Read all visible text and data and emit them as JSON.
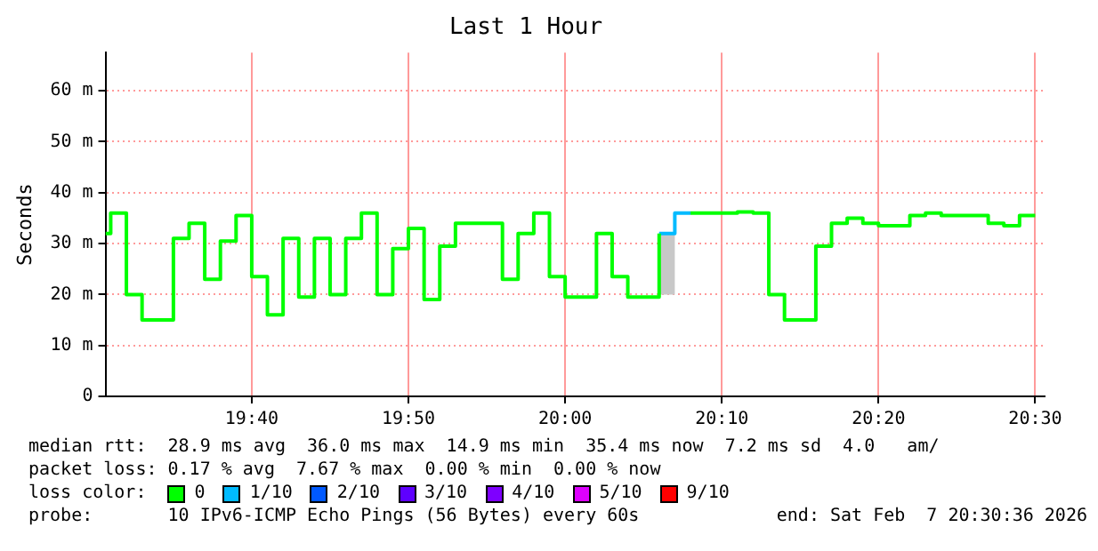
{
  "chart_data": {
    "type": "step",
    "title": "Last 1 Hour",
    "ylabel": "Seconds",
    "x": [
      "2026-02-07T19:30:40",
      "2026-02-07T19:31",
      "2026-02-07T19:32",
      "2026-02-07T19:33",
      "2026-02-07T19:34",
      "2026-02-07T19:35",
      "2026-02-07T19:36",
      "2026-02-07T19:37",
      "2026-02-07T19:38",
      "2026-02-07T19:39",
      "2026-02-07T19:40",
      "2026-02-07T19:41",
      "2026-02-07T19:42",
      "2026-02-07T19:43",
      "2026-02-07T19:44",
      "2026-02-07T19:45",
      "2026-02-07T19:46",
      "2026-02-07T19:47",
      "2026-02-07T19:48",
      "2026-02-07T19:49",
      "2026-02-07T19:50",
      "2026-02-07T19:51",
      "2026-02-07T19:52",
      "2026-02-07T19:53",
      "2026-02-07T19:54",
      "2026-02-07T19:55",
      "2026-02-07T19:56",
      "2026-02-07T19:57",
      "2026-02-07T19:58",
      "2026-02-07T19:59",
      "2026-02-07T20:00",
      "2026-02-07T20:01",
      "2026-02-07T20:02",
      "2026-02-07T20:03",
      "2026-02-07T20:04",
      "2026-02-07T20:05",
      "2026-02-07T20:06",
      "2026-02-07T20:07",
      "2026-02-07T20:08",
      "2026-02-07T20:09",
      "2026-02-07T20:10",
      "2026-02-07T20:11",
      "2026-02-07T20:12",
      "2026-02-07T20:13",
      "2026-02-07T20:14",
      "2026-02-07T20:15",
      "2026-02-07T20:16",
      "2026-02-07T20:17",
      "2026-02-07T20:18",
      "2026-02-07T20:19",
      "2026-02-07T20:20",
      "2026-02-07T20:21",
      "2026-02-07T20:22",
      "2026-02-07T20:23",
      "2026-02-07T20:24",
      "2026-02-07T20:25",
      "2026-02-07T20:26",
      "2026-02-07T20:27",
      "2026-02-07T20:28",
      "2026-02-07T20:29",
      "2026-02-07T20:30"
    ],
    "series": [
      {
        "name": "0",
        "color": "#00ff00",
        "values": [
          32,
          36,
          20,
          15,
          15,
          31,
          34,
          23,
          30.5,
          35.5,
          23.5,
          16,
          31,
          19.5,
          31,
          20,
          31,
          36,
          20,
          29,
          33,
          19,
          29.5,
          34,
          34,
          34,
          23,
          32,
          36,
          23.5,
          19.5,
          19.5,
          32,
          23.5,
          19.5,
          19.5,
          32,
          null,
          36,
          36,
          36,
          36.2,
          36,
          20,
          15,
          15,
          29.5,
          34,
          35,
          34,
          33.5,
          33.5,
          35.5,
          36,
          35.5,
          35.5,
          35.5,
          34,
          33.5,
          35.5,
          35.5
        ],
        "lower": [
          null,
          null,
          null,
          null,
          null,
          null,
          null,
          null,
          null,
          null,
          null,
          null,
          null,
          null,
          null,
          null,
          null,
          null,
          null,
          null,
          null,
          null,
          null,
          null,
          null,
          null,
          null,
          null,
          null,
          null,
          null,
          null,
          null,
          null,
          null,
          null,
          20,
          20,
          null,
          null,
          null,
          null,
          null,
          null,
          null,
          null,
          null,
          null,
          null,
          null,
          null,
          null,
          null,
          null,
          null,
          null,
          null,
          null,
          null,
          null,
          null
        ],
        "upper": [
          null,
          null,
          null,
          null,
          null,
          null,
          null,
          null,
          null,
          null,
          null,
          null,
          null,
          null,
          null,
          null,
          null,
          null,
          null,
          null,
          null,
          null,
          null,
          null,
          null,
          null,
          null,
          null,
          null,
          null,
          null,
          null,
          null,
          null,
          null,
          null,
          32,
          32,
          null,
          null,
          null,
          null,
          null,
          null,
          null,
          null,
          null,
          null,
          null,
          null,
          null,
          null,
          null,
          null,
          null,
          null,
          null,
          null,
          null,
          null,
          null
        ]
      },
      {
        "name": "1/10",
        "color": "#00bbff",
        "values": [
          null,
          null,
          null,
          null,
          null,
          null,
          null,
          null,
          null,
          null,
          null,
          null,
          null,
          null,
          null,
          null,
          null,
          null,
          null,
          null,
          null,
          null,
          null,
          null,
          null,
          null,
          null,
          null,
          null,
          null,
          null,
          null,
          null,
          null,
          null,
          null,
          32,
          36,
          36,
          null,
          null,
          null,
          null,
          null,
          null,
          null,
          null,
          null,
          null,
          null,
          null,
          null,
          null,
          null,
          null,
          null,
          null,
          null,
          null,
          null,
          null
        ]
      },
      {
        "name": "2/10",
        "color": "#0059ff",
        "values": [
          null,
          null,
          null,
          null,
          null,
          null,
          null,
          null,
          null,
          null,
          null,
          null,
          null,
          null,
          null,
          null,
          null,
          null,
          null,
          null,
          null,
          null,
          null,
          null,
          null,
          null,
          null,
          null,
          null,
          null,
          null,
          null,
          null,
          null,
          null,
          null,
          null,
          null,
          null,
          null,
          null,
          null,
          null,
          null,
          null,
          null,
          null,
          null,
          null,
          null,
          null,
          null,
          null,
          null,
          null,
          null,
          null,
          null,
          null,
          null,
          null
        ]
      },
      {
        "name": "3/10",
        "color": "#5e00ff",
        "values": [
          null,
          null,
          null,
          null,
          null,
          null,
          null,
          null,
          null,
          null,
          null,
          null,
          null,
          null,
          null,
          null,
          null,
          null,
          null,
          null,
          null,
          null,
          null,
          null,
          null,
          null,
          null,
          null,
          null,
          null,
          null,
          null,
          null,
          null,
          null,
          null,
          null,
          null,
          null,
          null,
          null,
          null,
          null,
          null,
          null,
          null,
          null,
          null,
          null,
          null,
          null,
          null,
          null,
          null,
          null,
          null,
          null,
          null,
          null,
          null,
          null
        ]
      },
      {
        "name": "4/10",
        "color": "#7e00ff",
        "values": [
          null,
          null,
          null,
          null,
          null,
          null,
          null,
          null,
          null,
          null,
          null,
          null,
          null,
          null,
          null,
          null,
          null,
          null,
          null,
          null,
          null,
          null,
          null,
          null,
          null,
          null,
          null,
          null,
          null,
          null,
          null,
          null,
          null,
          null,
          null,
          null,
          null,
          null,
          null,
          null,
          null,
          null,
          null,
          null,
          null,
          null,
          null,
          null,
          null,
          null,
          null,
          null,
          null,
          null,
          null,
          null,
          null,
          null,
          null,
          null,
          null
        ]
      },
      {
        "name": "5/10",
        "color": "#dd00ff",
        "values": [
          null,
          null,
          null,
          null,
          null,
          null,
          null,
          null,
          null,
          null,
          null,
          null,
          null,
          null,
          null,
          null,
          null,
          null,
          null,
          null,
          null,
          null,
          null,
          null,
          null,
          null,
          null,
          null,
          null,
          null,
          null,
          null,
          null,
          null,
          null,
          null,
          null,
          null,
          null,
          null,
          null,
          null,
          null,
          null,
          null,
          null,
          null,
          null,
          null,
          null,
          null,
          null,
          null,
          null,
          null,
          null,
          null,
          null,
          null,
          null,
          null
        ]
      },
      {
        "name": "9/10",
        "color": "#ff0000",
        "values": [
          null,
          null,
          null,
          null,
          null,
          null,
          null,
          null,
          null,
          null,
          null,
          null,
          null,
          null,
          null,
          null,
          null,
          null,
          null,
          null,
          null,
          null,
          null,
          null,
          null,
          null,
          null,
          null,
          null,
          null,
          null,
          null,
          null,
          null,
          null,
          null,
          null,
          null,
          null,
          null,
          null,
          null,
          null,
          null,
          null,
          null,
          null,
          null,
          null,
          null,
          null,
          null,
          null,
          null,
          null,
          null,
          null,
          null,
          null,
          null,
          null
        ]
      }
    ],
    "xlim": [
      "2026-02-07T19:30:40",
      "2026-02-07T20:30:36"
    ],
    "xticks": [
      {
        "value": "2026-02-07T19:40",
        "label": "19:40"
      },
      {
        "value": "2026-02-07T19:50",
        "label": "19:50"
      },
      {
        "value": "2026-02-07T20:00",
        "label": "20:00"
      },
      {
        "value": "2026-02-07T20:10",
        "label": "20:10"
      },
      {
        "value": "2026-02-07T20:20",
        "label": "20:20"
      },
      {
        "value": "2026-02-07T20:30",
        "label": "20:30"
      }
    ],
    "ylim": [
      0,
      67.5
    ],
    "yticks": [
      0,
      {
        "value": 10,
        "label": "10 m"
      },
      {
        "value": 20,
        "label": "20 m"
      },
      {
        "value": 30,
        "label": "30 m"
      },
      {
        "value": 40,
        "label": "40 m"
      },
      {
        "value": 50,
        "label": "50 m"
      },
      {
        "value": 60,
        "label": "60 m"
      }
    ],
    "grid": true,
    "legend": "bottom",
    "legend_title": "loss color:",
    "marker": "none",
    "annotations": [
      "median rtt:  28.9 ms avg  36.0 ms max  14.9 ms min  35.4 ms now  7.2 ms sd  4.0   am/",
      "packet loss: 0.17 % avg  7.67 % max  0.00 % min  0.00 % now",
      "probe:       10 IPv6-ICMP Echo Pings (56 Bytes) every 60s",
      "end: Sat Feb  7 20:30:36 2026"
    ]
  }
}
